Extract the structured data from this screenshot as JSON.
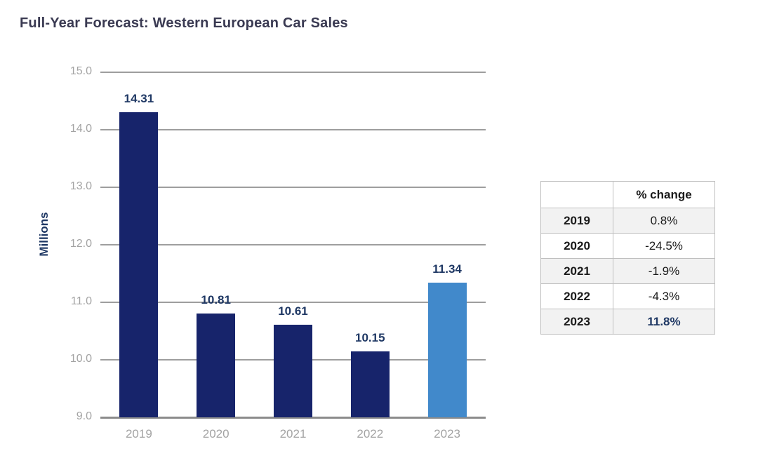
{
  "title": "Full-Year Forecast: Western European Car Sales",
  "chart_data": {
    "type": "bar",
    "categories": [
      "2019",
      "2020",
      "2021",
      "2022",
      "2023"
    ],
    "values": [
      14.31,
      10.81,
      10.61,
      10.15,
      11.34
    ],
    "data_labels": [
      "14.31",
      "10.81",
      "10.61",
      "10.15",
      "11.34"
    ],
    "title": "Full-Year Forecast: Western European Car Sales",
    "xlabel": "",
    "ylabel": "Millions",
    "ylim": [
      9.0,
      15.0
    ],
    "ytick_step": 1.0,
    "ytick_labels": [
      "9.0",
      "10.0",
      "11.0",
      "12.0",
      "13.0",
      "14.0",
      "15.0"
    ],
    "grid": true,
    "legend": "none",
    "bar_colors": [
      "#17246b",
      "#17246b",
      "#17246b",
      "#17246b",
      "#4189cb"
    ],
    "highlight_index": 4
  },
  "colors": {
    "bar_navy": "#17246b",
    "bar_light_blue": "#4189cb",
    "data_label_navy": "#1f3864",
    "axis_text_gray": "#a3a3a3",
    "gridline_gray": "#9e9e9e",
    "title_color": "#3a3a52",
    "table_border": "#bfbfbf",
    "table_shade": "#f2f2f2"
  },
  "table": {
    "header": [
      "",
      "% change"
    ],
    "rows": [
      {
        "year": "2019",
        "change": "0.8%"
      },
      {
        "year": "2020",
        "change": "-24.5%"
      },
      {
        "year": "2021",
        "change": "-1.9%"
      },
      {
        "year": "2022",
        "change": "-4.3%"
      },
      {
        "year": "2023",
        "change": "11.8%"
      }
    ]
  }
}
